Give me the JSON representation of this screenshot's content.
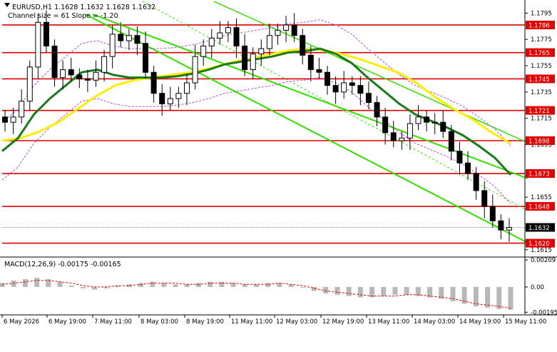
{
  "header": {
    "symbol_line": "EURUSD,H1  1.1628 1.1632 1.1628 1.1632",
    "channel_line": "Channel size = 61 Slope = -1.20"
  },
  "colors": {
    "background": "#ffffff",
    "candle": "#000000",
    "level_line": "#e00000",
    "level_label_bg": "#e00000",
    "level_label_text": "#ffffff",
    "ma_fast": "#1a7a1a",
    "ma_slow": "#ffee00",
    "channel": "#33dd00",
    "envelope": "#b050e0",
    "macd_hist": "#b8b8b8",
    "macd_signal": "#e00000",
    "price_tag_bg": "#000000"
  },
  "chart_data": [
    {
      "type": "candlestick",
      "title": "",
      "x_tick_labels": [
        "6 May 2026",
        "6 May 19:00",
        "7 May 11:00",
        "8 May 03:00",
        "8 May 19:00",
        "11 May 11:00",
        "12 May 03:00",
        "12 May 19:00",
        "13 May 11:00",
        "14 May 03:00",
        "14 May 19:00",
        "15 May 11:00"
      ],
      "y_tick_labels": [
        "1.1795",
        "1.1775",
        "1.1755",
        "1.1735",
        "1.1715",
        "1.1695",
        "1.1655",
        "1.1615"
      ],
      "y_ticks": [
        1.1795,
        1.1775,
        1.1755,
        1.1735,
        1.1715,
        1.1695,
        1.1655,
        1.1615
      ],
      "ylim": [
        1.161,
        1.1805
      ],
      "levels": [
        {
          "label": "1.1786",
          "value": 1.1786
        },
        {
          "label": "1.1765",
          "value": 1.1765
        },
        {
          "label": "1.1745",
          "value": 1.1745
        },
        {
          "label": "1.1721",
          "value": 1.1721
        },
        {
          "label": "1.1698",
          "value": 1.1698
        },
        {
          "label": "1.1673",
          "value": 1.1673
        },
        {
          "label": "1.1648",
          "value": 1.1648
        },
        {
          "label": "1.1620",
          "value": 1.162
        }
      ],
      "current_price": {
        "label": "1.1632",
        "value": 1.1632
      },
      "close_series": [
        1.1712,
        1.1716,
        1.1728,
        1.1754,
        1.1788,
        1.177,
        1.1746,
        1.1752,
        1.1748,
        1.1745,
        1.1744,
        1.175,
        1.1762,
        1.1779,
        1.1774,
        1.1778,
        1.1772,
        1.175,
        1.1734,
        1.1726,
        1.173,
        1.1734,
        1.1742,
        1.1762,
        1.177,
        1.1776,
        1.178,
        1.1784,
        1.177,
        1.1752,
        1.1764,
        1.1768,
        1.1778,
        1.1782,
        1.1786,
        1.1778,
        1.1763,
        1.1752,
        1.175,
        1.174,
        1.1735,
        1.1742,
        1.174,
        1.1734,
        1.1727,
        1.1716,
        1.1704,
        1.1698,
        1.17,
        1.1711,
        1.1716,
        1.1712,
        1.1712,
        1.1705,
        1.169,
        1.1681,
        1.1673,
        1.166,
        1.1648,
        1.1637,
        1.163,
        1.1632
      ],
      "series": [
        {
          "name": "",
          "style": "ma_fast",
          "values": [
            1.169,
            1.17,
            1.1718,
            1.173,
            1.174,
            1.175,
            1.1752,
            1.1748,
            1.1746,
            1.1746,
            1.1746,
            1.1747,
            1.1749,
            1.1752,
            1.1756,
            1.1758,
            1.176,
            1.1762,
            1.1765,
            1.1766,
            1.1768,
            1.1764,
            1.1757,
            1.1746,
            1.1736,
            1.1726,
            1.1718,
            1.1713,
            1.1708,
            1.1702,
            1.1694,
            1.1685,
            1.1672
          ]
        },
        {
          "name": "",
          "style": "ma_slow",
          "values": [
            1.1698,
            1.17,
            1.1705,
            1.1712,
            1.1722,
            1.1732,
            1.174,
            1.1744,
            1.1746,
            1.1748,
            1.175,
            1.1753,
            1.1757,
            1.176,
            1.1763,
            1.1766,
            1.1768,
            1.1767,
            1.1764,
            1.176,
            1.1755,
            1.175,
            1.1742,
            1.1731,
            1.1722,
            1.1714,
            1.1704,
            1.1696
          ]
        }
      ]
    },
    {
      "type": "bar",
      "title": "MACD(12,26,9) -0.00175 -0.00165",
      "y_tick_labels": [
        "0.00209",
        "0.00",
        "-0.00195"
      ],
      "y_ticks": [
        0.00209,
        0.0,
        -0.00195
      ],
      "ylim": [
        -0.0021,
        0.0022
      ],
      "values": [
        0.0003,
        0.0005,
        0.0006,
        0.0007,
        0.0006,
        0.0004,
        0.0001,
        -0.0001,
        -0.0002,
        -0.0001,
        0.0001,
        0.0002,
        0.0003,
        0.0004,
        0.0003,
        0.0002,
        0.0002,
        0.0003,
        0.0004,
        0.0004,
        0.0003,
        0.0002,
        0.0002,
        0.0003,
        0.0003,
        0.0002,
        0.0,
        -0.0003,
        -0.0005,
        -0.0006,
        -0.0007,
        -0.0008,
        -0.0008,
        -0.0007,
        -0.0006,
        -0.0006,
        -0.0007,
        -0.0008,
        -0.0009,
        -0.0011,
        -0.0013,
        -0.0015,
        -0.0016,
        -0.0017,
        -0.00175
      ],
      "signal": [
        0.0002,
        0.0003,
        0.0004,
        0.0005,
        0.0005,
        0.0004,
        0.0003,
        0.0001,
        0.0,
        0.0,
        0.0001,
        0.0001,
        0.0002,
        0.0003,
        0.0003,
        0.0003,
        0.0002,
        0.0002,
        0.0003,
        0.0003,
        0.0003,
        0.0002,
        0.0002,
        0.0002,
        0.0003,
        0.0002,
        0.0001,
        -0.0001,
        -0.0003,
        -0.0004,
        -0.0005,
        -0.0006,
        -0.0007,
        -0.0007,
        -0.0007,
        -0.0006,
        -0.0006,
        -0.0007,
        -0.0008,
        -0.0009,
        -0.0011,
        -0.0013,
        -0.0014,
        -0.0015,
        -0.00165
      ]
    }
  ]
}
